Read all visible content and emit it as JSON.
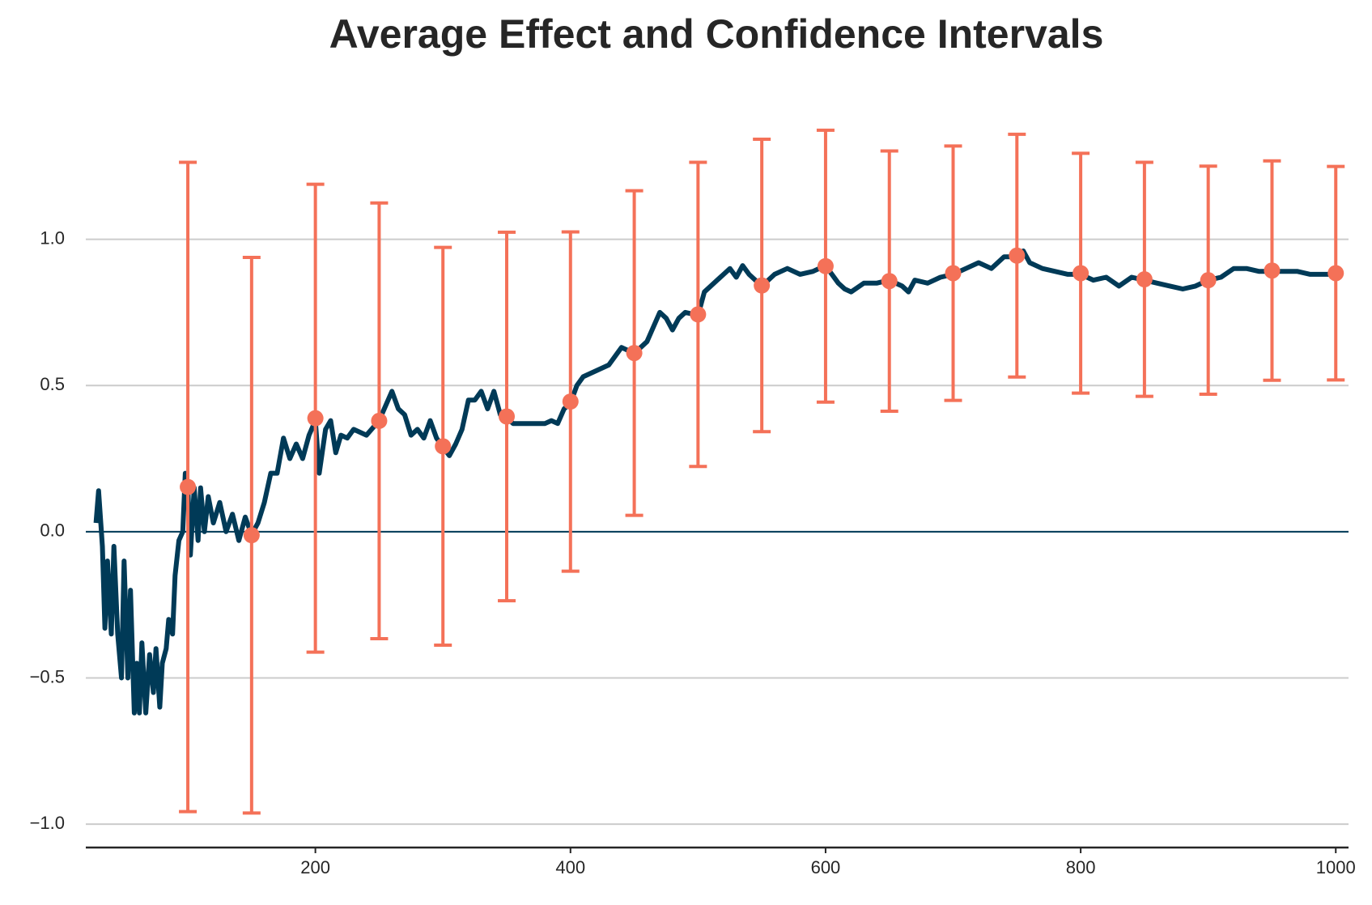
{
  "chart_data": {
    "type": "line",
    "title": "Average Effect and Confidence Intervals",
    "x": [
      28,
      30,
      33,
      35,
      37,
      40,
      42,
      45,
      48,
      50,
      53,
      55,
      58,
      60,
      62,
      64,
      67,
      70,
      73,
      75,
      78,
      80,
      83,
      85,
      88,
      90,
      93,
      96,
      98,
      100,
      102,
      105,
      108,
      110,
      113,
      116,
      120,
      125,
      130,
      135,
      140,
      145,
      150,
      155,
      160,
      165,
      170,
      175,
      180,
      185,
      190,
      195,
      200,
      203,
      208,
      212,
      216,
      220,
      225,
      230,
      240,
      250,
      255,
      260,
      265,
      270,
      275,
      280,
      285,
      290,
      295,
      300,
      305,
      310,
      315,
      320,
      325,
      330,
      335,
      340,
      345,
      350,
      355,
      360,
      370,
      380,
      385,
      390,
      395,
      400,
      405,
      410,
      420,
      430,
      440,
      450,
      460,
      465,
      470,
      475,
      480,
      485,
      490,
      500,
      505,
      510,
      520,
      525,
      530,
      535,
      540,
      550,
      560,
      570,
      580,
      590,
      600,
      610,
      615,
      620,
      630,
      640,
      650,
      660,
      665,
      670,
      680,
      690,
      700,
      710,
      720,
      730,
      740,
      750,
      755,
      760,
      770,
      780,
      790,
      800,
      810,
      820,
      830,
      840,
      850,
      860,
      870,
      880,
      890,
      900,
      910,
      920,
      930,
      940,
      950,
      960,
      970,
      980,
      990,
      1000
    ],
    "values": [
      0.03,
      0.14,
      -0.05,
      -0.33,
      -0.1,
      -0.35,
      -0.05,
      -0.35,
      -0.5,
      -0.1,
      -0.5,
      -0.2,
      -0.62,
      -0.45,
      -0.62,
      -0.38,
      -0.62,
      -0.42,
      -0.55,
      -0.4,
      -0.6,
      -0.45,
      -0.4,
      -0.3,
      -0.35,
      -0.15,
      -0.03,
      0.0,
      0.2,
      0.15,
      -0.08,
      0.15,
      -0.03,
      0.15,
      0.0,
      0.12,
      0.03,
      0.1,
      0.0,
      0.06,
      -0.03,
      0.05,
      -0.01,
      0.03,
      0.1,
      0.2,
      0.2,
      0.32,
      0.25,
      0.3,
      0.25,
      0.33,
      0.38,
      0.2,
      0.35,
      0.38,
      0.27,
      0.33,
      0.32,
      0.35,
      0.33,
      0.38,
      0.43,
      0.48,
      0.42,
      0.4,
      0.33,
      0.35,
      0.32,
      0.38,
      0.32,
      0.29,
      0.26,
      0.3,
      0.35,
      0.45,
      0.45,
      0.48,
      0.42,
      0.48,
      0.4,
      0.39,
      0.37,
      0.37,
      0.37,
      0.37,
      0.38,
      0.37,
      0.42,
      0.44,
      0.5,
      0.53,
      0.55,
      0.57,
      0.63,
      0.61,
      0.65,
      0.7,
      0.75,
      0.73,
      0.69,
      0.73,
      0.75,
      0.74,
      0.82,
      0.84,
      0.88,
      0.9,
      0.87,
      0.91,
      0.88,
      0.84,
      0.88,
      0.9,
      0.88,
      0.89,
      0.91,
      0.85,
      0.83,
      0.82,
      0.85,
      0.85,
      0.86,
      0.84,
      0.82,
      0.86,
      0.85,
      0.87,
      0.88,
      0.9,
      0.92,
      0.9,
      0.94,
      0.94,
      0.96,
      0.92,
      0.9,
      0.89,
      0.88,
      0.88,
      0.86,
      0.87,
      0.84,
      0.87,
      0.86,
      0.85,
      0.84,
      0.83,
      0.84,
      0.86,
      0.87,
      0.9,
      0.9,
      0.89,
      0.89,
      0.89,
      0.89,
      0.88,
      0.88,
      0.88
    ],
    "color": "#003a57",
    "error_bars": {
      "x": [
        100,
        150,
        200,
        250,
        300,
        350,
        400,
        450,
        500,
        550,
        600,
        650,
        700,
        750,
        800,
        850,
        900,
        950,
        1000
      ],
      "values": [
        0.153,
        -0.012,
        0.388,
        0.379,
        0.292,
        0.394,
        0.445,
        0.611,
        0.743,
        0.842,
        0.908,
        0.857,
        0.884,
        0.944,
        0.884,
        0.863,
        0.86,
        0.893,
        0.884
      ],
      "errors": [
        1.11,
        0.95,
        0.8,
        0.745,
        0.68,
        0.63,
        0.58,
        0.555,
        0.52,
        0.5,
        0.465,
        0.445,
        0.435,
        0.415,
        0.41,
        0.4,
        0.39,
        0.375,
        0.365
      ],
      "color": "#f47158"
    },
    "hline": 0,
    "xlim": [
      20,
      1010
    ],
    "ylim": [
      -1.08,
      1.45
    ],
    "xticks": [
      200,
      400,
      600,
      800,
      1000
    ],
    "yticks": [
      {
        "value": -1,
        "label": "−1.0"
      },
      {
        "value": -0.5,
        "label": "−0.5"
      },
      {
        "value": 0,
        "label": "0.0"
      },
      0.5,
      {
        "value": 1,
        "label": "1.0"
      }
    ],
    "grid": true
  }
}
